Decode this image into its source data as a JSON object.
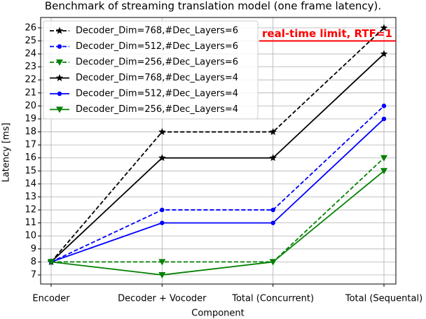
{
  "chart_data": {
    "type": "line",
    "title": "Benchmark of streaming translation model (one frame latency).",
    "x_label": "Component",
    "y_label": "Latency [ms]",
    "categories": [
      "Encoder",
      "Decoder + Vocoder",
      "Total (Concurrent)",
      "Total (Sequental)"
    ],
    "series": [
      {
        "name": "Decoder_Dim=768,#Dec_Layers=6",
        "color": "#000000",
        "dash": true,
        "marker": "star",
        "values": [
          8,
          18,
          18,
          26
        ]
      },
      {
        "name": "Decoder_Dim=512,#Dec_Layers=6",
        "color": "#0000ff",
        "dash": true,
        "marker": "circle",
        "values": [
          8,
          12,
          12,
          20
        ]
      },
      {
        "name": "Decoder_Dim=256,#Dec_Layers=6",
        "color": "#008000",
        "dash": true,
        "marker": "triangle",
        "values": [
          8,
          8,
          8,
          16
        ]
      },
      {
        "name": "Decoder_Dim=768,#Dec_Layers=4",
        "color": "#000000",
        "dash": false,
        "marker": "star",
        "values": [
          8,
          16,
          16,
          24
        ]
      },
      {
        "name": "Decoder_Dim=512,#Dec_Layers=4",
        "color": "#0000ff",
        "dash": false,
        "marker": "circle",
        "values": [
          8,
          11,
          11,
          19
        ]
      },
      {
        "name": "Decoder_Dim=256,#Dec_Layers=4",
        "color": "#008000",
        "dash": false,
        "marker": "triangle",
        "values": [
          8,
          7,
          8,
          15
        ]
      }
    ],
    "ylim": [
      6.3,
      26.8
    ],
    "yticks": [
      7,
      8,
      9,
      10,
      11,
      12,
      13,
      14,
      15,
      16,
      17,
      18,
      19,
      20,
      21,
      22,
      23,
      24,
      25,
      26
    ],
    "grid": true,
    "legend": "upper left",
    "annotation": {
      "text": "real-time limit, RTF=1",
      "y": 25,
      "color": "#ff0000"
    }
  }
}
